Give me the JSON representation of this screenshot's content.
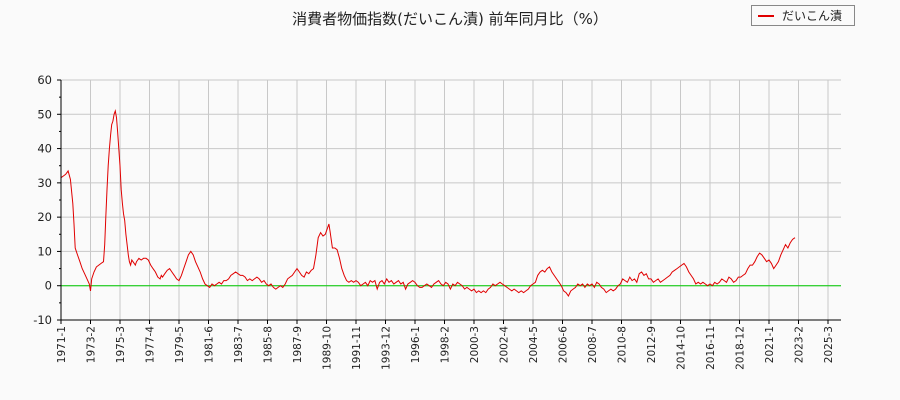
{
  "title": "消費者物価指数(だいこん漬) 前年同月比（%）",
  "legend": {
    "label": "だいこん漬",
    "color": "#e00000"
  },
  "colors": {
    "series": "#e00000",
    "zero_line": "#00cc00",
    "grid": "#c8c8c8",
    "axis": "#000000"
  },
  "chart_data": {
    "type": "line",
    "title": "消費者物価指数(だいこん漬) 前年同月比（%）",
    "xlabel": "",
    "ylabel": "",
    "ylim": [
      -10,
      60
    ],
    "yticks": [
      -10,
      0,
      10,
      20,
      30,
      40,
      50,
      60
    ],
    "xticks": [
      "1971-1",
      "1973-2",
      "1975-3",
      "1977-4",
      "1979-5",
      "1981-6",
      "1983-7",
      "1985-8",
      "1987-9",
      "1989-10",
      "1991-11",
      "1993-12",
      "1996-1",
      "1998-2",
      "2000-3",
      "2002-4",
      "2004-5",
      "2006-6",
      "2008-7",
      "2010-8",
      "2012-9",
      "2014-10",
      "2016-11",
      "2018-12",
      "2021-1",
      "2023-2",
      "2025-3"
    ],
    "grid": true,
    "legend_position": "top-right",
    "series": [
      {
        "name": "だいこん漬",
        "x_unit": "months since 1971-1",
        "points": [
          [
            0,
            31.5
          ],
          [
            2,
            32
          ],
          [
            4,
            32.5
          ],
          [
            6,
            33.5
          ],
          [
            8,
            31
          ],
          [
            10,
            24
          ],
          [
            11,
            18
          ],
          [
            12,
            11
          ],
          [
            14,
            9
          ],
          [
            16,
            7
          ],
          [
            18,
            5
          ],
          [
            20,
            3.5
          ],
          [
            22,
            2
          ],
          [
            24,
            0.5
          ],
          [
            25,
            -1.5
          ],
          [
            26,
            2
          ],
          [
            28,
            4
          ],
          [
            30,
            5.5
          ],
          [
            32,
            6
          ],
          [
            34,
            6.5
          ],
          [
            36,
            7
          ],
          [
            37,
            12
          ],
          [
            38,
            20
          ],
          [
            39,
            28
          ],
          [
            40,
            35
          ],
          [
            41,
            40
          ],
          [
            42,
            44
          ],
          [
            43,
            47
          ],
          [
            44,
            48
          ],
          [
            45,
            50
          ],
          [
            46,
            51
          ],
          [
            47,
            49
          ],
          [
            48,
            45
          ],
          [
            49,
            40
          ],
          [
            50,
            35
          ],
          [
            51,
            28
          ],
          [
            52,
            24
          ],
          [
            53,
            21
          ],
          [
            54,
            19
          ],
          [
            55,
            15
          ],
          [
            56,
            12
          ],
          [
            57,
            9
          ],
          [
            58,
            7
          ],
          [
            59,
            6
          ],
          [
            60,
            7.5
          ],
          [
            62,
            6.5
          ],
          [
            63,
            6
          ],
          [
            64,
            7
          ],
          [
            65,
            7.5
          ],
          [
            66,
            8
          ],
          [
            68,
            7.5
          ],
          [
            70,
            8
          ],
          [
            72,
            8
          ],
          [
            74,
            7.5
          ],
          [
            76,
            6
          ],
          [
            78,
            5
          ],
          [
            80,
            4
          ],
          [
            82,
            2.5
          ],
          [
            84,
            2
          ],
          [
            85,
            3
          ],
          [
            86,
            2.5
          ],
          [
            88,
            3.5
          ],
          [
            90,
            4.5
          ],
          [
            92,
            5
          ],
          [
            94,
            4
          ],
          [
            96,
            3
          ],
          [
            98,
            2
          ],
          [
            100,
            1.5
          ],
          [
            102,
            3
          ],
          [
            104,
            5
          ],
          [
            106,
            7
          ],
          [
            108,
            9
          ],
          [
            110,
            10
          ],
          [
            112,
            9
          ],
          [
            114,
            7
          ],
          [
            116,
            5.5
          ],
          [
            118,
            4
          ],
          [
            120,
            2
          ],
          [
            122,
            0.5
          ],
          [
            124,
            0
          ],
          [
            126,
            -0.5
          ],
          [
            128,
            0.5
          ],
          [
            130,
            0
          ],
          [
            132,
            0.5
          ],
          [
            134,
            1
          ],
          [
            136,
            0.5
          ],
          [
            138,
            1.5
          ],
          [
            140,
            1.5
          ],
          [
            142,
            2
          ],
          [
            144,
            3
          ],
          [
            146,
            3.5
          ],
          [
            148,
            4
          ],
          [
            150,
            3.5
          ],
          [
            152,
            3
          ],
          [
            154,
            3
          ],
          [
            156,
            2.5
          ],
          [
            158,
            1.5
          ],
          [
            160,
            2
          ],
          [
            162,
            1.5
          ],
          [
            164,
            2
          ],
          [
            166,
            2.5
          ],
          [
            168,
            2
          ],
          [
            170,
            1
          ],
          [
            172,
            1.5
          ],
          [
            174,
            0.5
          ],
          [
            176,
            0
          ],
          [
            178,
            0.5
          ],
          [
            180,
            -0.5
          ],
          [
            182,
            -1
          ],
          [
            184,
            -0.5
          ],
          [
            186,
            0
          ],
          [
            188,
            -0.5
          ],
          [
            190,
            0.5
          ],
          [
            192,
            2
          ],
          [
            194,
            2.5
          ],
          [
            196,
            3
          ],
          [
            198,
            4
          ],
          [
            200,
            5
          ],
          [
            202,
            4
          ],
          [
            204,
            3
          ],
          [
            206,
            2.5
          ],
          [
            208,
            4
          ],
          [
            210,
            3.5
          ],
          [
            212,
            4.5
          ],
          [
            214,
            5
          ],
          [
            216,
            9
          ],
          [
            218,
            14
          ],
          [
            220,
            15.5
          ],
          [
            222,
            14.5
          ],
          [
            224,
            15
          ],
          [
            226,
            17
          ],
          [
            227,
            18
          ],
          [
            228,
            16
          ],
          [
            230,
            11
          ],
          [
            232,
            11
          ],
          [
            234,
            10.5
          ],
          [
            236,
            8
          ],
          [
            238,
            5
          ],
          [
            240,
            3
          ],
          [
            242,
            1.5
          ],
          [
            244,
            1
          ],
          [
            246,
            1.5
          ],
          [
            248,
            1
          ],
          [
            250,
            1.5
          ],
          [
            252,
            1
          ],
          [
            254,
            0
          ],
          [
            256,
            0.5
          ],
          [
            258,
            1
          ],
          [
            260,
            0
          ],
          [
            262,
            1.5
          ],
          [
            264,
            1
          ],
          [
            266,
            1.5
          ],
          [
            268,
            -1
          ],
          [
            270,
            1
          ],
          [
            272,
            1.5
          ],
          [
            274,
            0.5
          ],
          [
            276,
            2
          ],
          [
            278,
            1
          ],
          [
            280,
            1.5
          ],
          [
            282,
            0.5
          ],
          [
            284,
            1
          ],
          [
            286,
            1.5
          ],
          [
            288,
            0.5
          ],
          [
            290,
            1
          ],
          [
            292,
            -1
          ],
          [
            294,
            0.5
          ],
          [
            296,
            1
          ],
          [
            298,
            1.5
          ],
          [
            300,
            1
          ],
          [
            302,
            0
          ],
          [
            304,
            -0.5
          ],
          [
            306,
            -0.5
          ],
          [
            308,
            0
          ],
          [
            310,
            0.5
          ],
          [
            312,
            0
          ],
          [
            314,
            -0.5
          ],
          [
            316,
            0.5
          ],
          [
            318,
            1
          ],
          [
            320,
            1.5
          ],
          [
            322,
            0.5
          ],
          [
            324,
            0
          ],
          [
            326,
            1
          ],
          [
            328,
            0.5
          ],
          [
            330,
            -1
          ],
          [
            332,
            0.5
          ],
          [
            334,
            0
          ],
          [
            336,
            1
          ],
          [
            338,
            0.5
          ],
          [
            340,
            0
          ],
          [
            342,
            -1
          ],
          [
            344,
            -0.5
          ],
          [
            346,
            -1
          ],
          [
            348,
            -1.5
          ],
          [
            350,
            -1
          ],
          [
            352,
            -2
          ],
          [
            354,
            -1.5
          ],
          [
            356,
            -2
          ],
          [
            358,
            -1.5
          ],
          [
            360,
            -2
          ],
          [
            362,
            -1
          ],
          [
            364,
            -0.5
          ],
          [
            366,
            0.5
          ],
          [
            368,
            0
          ],
          [
            370,
            0.5
          ],
          [
            372,
            1
          ],
          [
            374,
            0.5
          ],
          [
            376,
            0
          ],
          [
            378,
            -0.5
          ],
          [
            380,
            -1
          ],
          [
            382,
            -1.5
          ],
          [
            384,
            -1
          ],
          [
            386,
            -1.5
          ],
          [
            388,
            -2
          ],
          [
            390,
            -1.5
          ],
          [
            392,
            -2
          ],
          [
            394,
            -1.5
          ],
          [
            396,
            -1
          ],
          [
            398,
            0
          ],
          [
            400,
            0.5
          ],
          [
            402,
            1
          ],
          [
            404,
            3
          ],
          [
            406,
            4
          ],
          [
            408,
            4.5
          ],
          [
            410,
            4
          ],
          [
            412,
            5
          ],
          [
            414,
            5.5
          ],
          [
            416,
            4
          ],
          [
            418,
            3
          ],
          [
            420,
            2
          ],
          [
            422,
            1
          ],
          [
            424,
            0
          ],
          [
            426,
            -1.5
          ],
          [
            428,
            -2
          ],
          [
            430,
            -3
          ],
          [
            432,
            -1.5
          ],
          [
            434,
            -1
          ],
          [
            436,
            -0.5
          ],
          [
            438,
            0.5
          ],
          [
            440,
            0
          ],
          [
            442,
            0.5
          ],
          [
            444,
            -0.5
          ],
          [
            446,
            0.5
          ],
          [
            448,
            0
          ],
          [
            450,
            0.5
          ],
          [
            452,
            -0.5
          ],
          [
            454,
            1
          ],
          [
            456,
            0.5
          ],
          [
            458,
            -0.5
          ],
          [
            460,
            -1
          ],
          [
            462,
            -2
          ],
          [
            464,
            -1.5
          ],
          [
            466,
            -1
          ],
          [
            468,
            -1.5
          ],
          [
            470,
            -1
          ],
          [
            472,
            0
          ],
          [
            474,
            0.5
          ],
          [
            476,
            2
          ],
          [
            478,
            1.5
          ],
          [
            480,
            1
          ],
          [
            482,
            2.5
          ],
          [
            484,
            1.5
          ],
          [
            486,
            2
          ],
          [
            488,
            1
          ],
          [
            490,
            3.5
          ],
          [
            492,
            4
          ],
          [
            494,
            3
          ],
          [
            496,
            3.5
          ],
          [
            498,
            2
          ],
          [
            500,
            2
          ],
          [
            502,
            1
          ],
          [
            504,
            1.5
          ],
          [
            506,
            2
          ],
          [
            508,
            1
          ],
          [
            510,
            1.5
          ],
          [
            512,
            2
          ],
          [
            514,
            2.5
          ],
          [
            516,
            3
          ],
          [
            518,
            4
          ],
          [
            520,
            4.5
          ],
          [
            522,
            5
          ],
          [
            524,
            5.5
          ],
          [
            526,
            6
          ],
          [
            528,
            6.5
          ],
          [
            530,
            5.5
          ],
          [
            532,
            4
          ],
          [
            534,
            3
          ],
          [
            536,
            2
          ],
          [
            538,
            0.5
          ],
          [
            540,
            1
          ],
          [
            542,
            0.5
          ],
          [
            544,
            1
          ],
          [
            546,
            0.5
          ],
          [
            548,
            0
          ],
          [
            550,
            0.5
          ],
          [
            552,
            0
          ],
          [
            554,
            1
          ],
          [
            556,
            0.5
          ],
          [
            558,
            1
          ],
          [
            560,
            2
          ],
          [
            562,
            1.5
          ],
          [
            564,
            1
          ],
          [
            566,
            2.5
          ],
          [
            568,
            2
          ],
          [
            570,
            1
          ],
          [
            572,
            1.5
          ],
          [
            574,
            2.5
          ],
          [
            576,
            2.5
          ],
          [
            578,
            3
          ],
          [
            580,
            3.5
          ],
          [
            582,
            5
          ],
          [
            584,
            6
          ],
          [
            586,
            6
          ],
          [
            588,
            7
          ],
          [
            590,
            8.5
          ],
          [
            592,
            9.5
          ],
          [
            594,
            9
          ],
          [
            596,
            8
          ],
          [
            598,
            7
          ],
          [
            600,
            7.5
          ],
          [
            602,
            6.5
          ],
          [
            604,
            5
          ],
          [
            606,
            6
          ],
          [
            608,
            7
          ],
          [
            610,
            9
          ],
          [
            612,
            10.5
          ],
          [
            614,
            12
          ],
          [
            616,
            11
          ],
          [
            618,
            12.5
          ],
          [
            620,
            13.5
          ],
          [
            622,
            14
          ]
        ]
      }
    ]
  }
}
